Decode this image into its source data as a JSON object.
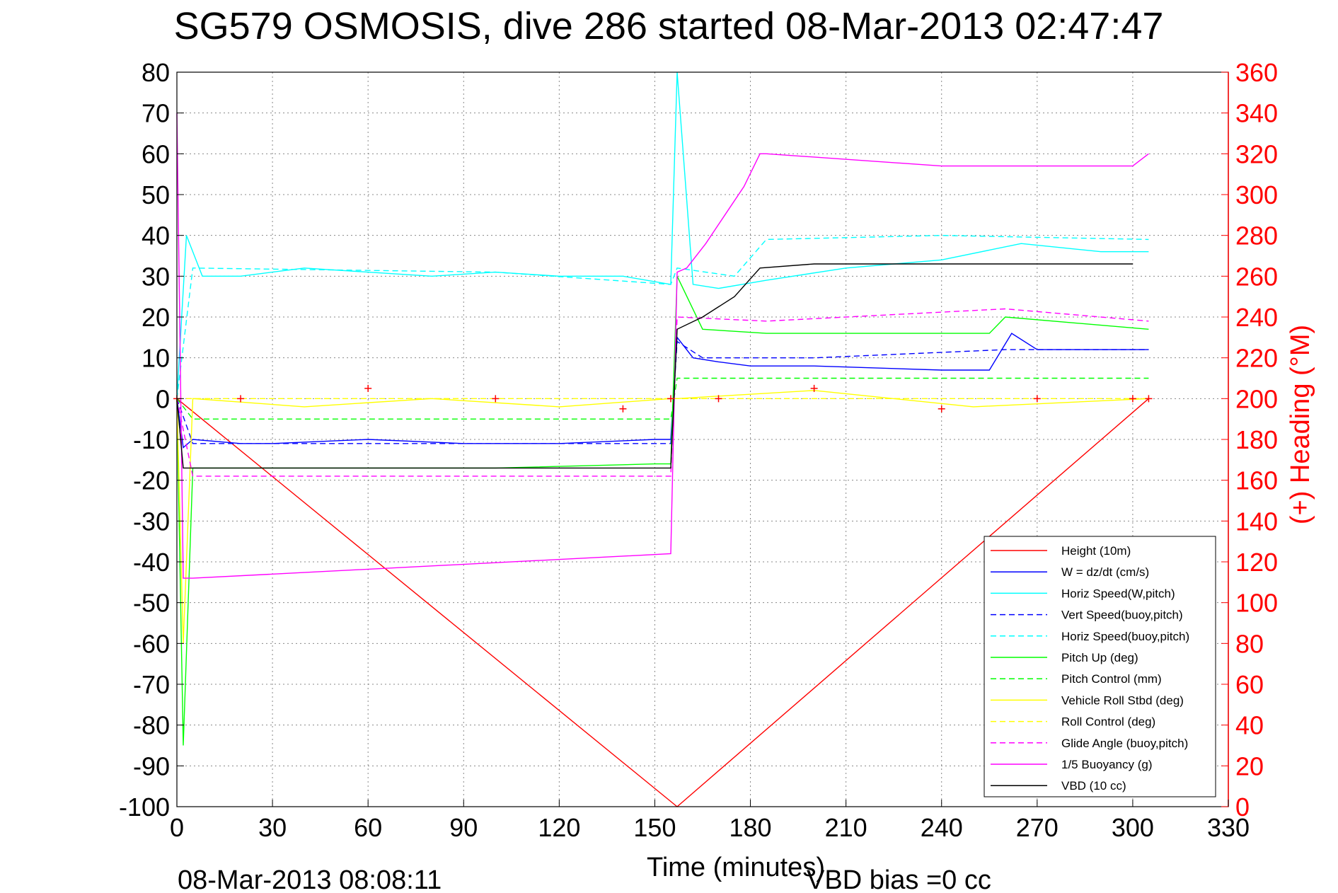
{
  "title": "SG579 OSMOSIS, dive 286 started 08-Mar-2013 02:47:47",
  "footer": {
    "end_time": "08-Mar-2013 08:08:11",
    "vbd_bias": "VBD bias =0 cc"
  },
  "chart_data": {
    "type": "line",
    "xlabel": "Time (minutes)",
    "ylabel_right": "(+) Heading (°M)",
    "xlim": [
      0,
      330
    ],
    "ylim": [
      -100,
      80
    ],
    "ylim_right": [
      0,
      360
    ],
    "x_ticks": [
      "0",
      "30",
      "60",
      "90",
      "120",
      "150",
      "180",
      "210",
      "240",
      "270",
      "300",
      "330"
    ],
    "y_ticks": [
      "80",
      "70",
      "60",
      "50",
      "40",
      "30",
      "20",
      "10",
      "0",
      "-10",
      "-20",
      "-30",
      "-40",
      "-50",
      "-60",
      "-70",
      "-80",
      "-90",
      "-100"
    ],
    "y_ticks_right": [
      "360",
      "340",
      "320",
      "300",
      "280",
      "260",
      "240",
      "220",
      "200",
      "180",
      "160",
      "140",
      "120",
      "100",
      "80",
      "60",
      "40",
      "20",
      "0"
    ],
    "grid": true,
    "legend_position": "bottom-right",
    "colors": {
      "height": "#ff0000",
      "w": "#0000ff",
      "horiz_speed": "#00ffff",
      "pitch": "#00ff00",
      "roll": "#ffff00",
      "glide": "#ff00ff",
      "buoyancy": "#ff00ff",
      "vbd": "#000000",
      "heading": "#ff0000"
    },
    "series": [
      {
        "name": "Height (10m)",
        "style": "solid",
        "color": "#ff0000",
        "x": [
          0,
          157,
          305
        ],
        "y": [
          0,
          -100,
          0
        ]
      },
      {
        "name": "W = dz/dt (cm/s)",
        "style": "solid",
        "color": "#0000ff",
        "x": [
          0,
          2,
          5,
          20,
          30,
          60,
          90,
          120,
          150,
          155,
          157,
          162,
          170,
          180,
          200,
          240,
          255,
          262,
          270,
          290,
          305
        ],
        "y": [
          0,
          -12,
          -10,
          -11,
          -11,
          -10,
          -11,
          -11,
          -10,
          -10,
          15,
          10,
          9,
          8,
          8,
          7,
          7,
          16,
          12,
          12,
          12
        ]
      },
      {
        "name": "Horiz Speed(W,pitch)",
        "style": "solid",
        "color": "#00ffff",
        "x": [
          0,
          3,
          8,
          20,
          40,
          60,
          80,
          100,
          120,
          140,
          155,
          157,
          162,
          170,
          185,
          210,
          240,
          265,
          290,
          305
        ],
        "y": [
          0,
          40,
          30,
          30,
          32,
          31,
          30,
          31,
          30,
          30,
          28,
          80,
          28,
          27,
          29,
          32,
          34,
          38,
          36,
          36
        ]
      },
      {
        "name": "Vert Speed(buoy,pitch)",
        "style": "dashed",
        "color": "#0000ff",
        "x": [
          0,
          5,
          155,
          157,
          165,
          200,
          260,
          305
        ],
        "y": [
          0,
          -11,
          -11,
          14,
          10,
          10,
          12,
          12
        ]
      },
      {
        "name": "Horiz Speed(buoy,pitch)",
        "style": "dashed",
        "color": "#00ffff",
        "x": [
          0,
          5,
          100,
          155,
          157,
          175,
          185,
          240,
          305
        ],
        "y": [
          0,
          32,
          31,
          28,
          32,
          30,
          39,
          40,
          39
        ]
      },
      {
        "name": "Pitch Up (deg)",
        "style": "solid",
        "color": "#00ff00",
        "x": [
          0,
          2,
          5,
          30,
          100,
          150,
          155,
          157,
          165,
          185,
          255,
          260,
          305
        ],
        "y": [
          0,
          -85,
          -17,
          -17,
          -17,
          -16,
          -16,
          30,
          17,
          16,
          16,
          20,
          17
        ]
      },
      {
        "name": "Pitch Control (mm)",
        "style": "dashed",
        "color": "#00ff00",
        "x": [
          0,
          5,
          155,
          157,
          305
        ],
        "y": [
          0,
          -5,
          -5,
          5,
          5
        ]
      },
      {
        "name": "Vehicle Roll Stbd (deg)",
        "style": "solid",
        "color": "#ffff00",
        "x": [
          0,
          2,
          5,
          40,
          80,
          120,
          155,
          157,
          200,
          250,
          305
        ],
        "y": [
          0,
          -60,
          0,
          -2,
          0,
          -2,
          0,
          0,
          2,
          -2,
          0
        ]
      },
      {
        "name": "Roll Control (deg)",
        "style": "dashed",
        "color": "#ffff00",
        "x": [
          0,
          305
        ],
        "y": [
          0,
          0
        ]
      },
      {
        "name": "Glide Angle (buoy,pitch)",
        "style": "dashed",
        "color": "#ff00ff",
        "x": [
          0,
          5,
          155,
          157,
          185,
          260,
          305
        ],
        "y": [
          0,
          -19,
          -19,
          20,
          19,
          22,
          19
        ]
      },
      {
        "name": "1/5 Buoyancy (g)",
        "style": "solid",
        "color": "#ff00ff",
        "x": [
          0,
          2,
          5,
          155,
          157,
          160,
          166,
          172,
          178,
          183,
          185,
          240,
          300,
          305
        ],
        "y": [
          70,
          -44,
          -44,
          -38,
          31,
          32,
          38,
          45,
          52,
          60,
          60,
          57,
          57,
          60
        ]
      },
      {
        "name": "VBD (10 cc)",
        "style": "solid",
        "color": "#000000",
        "x": [
          0,
          2,
          5,
          155,
          157,
          165,
          175,
          183,
          200,
          210,
          240,
          290,
          300
        ],
        "y": [
          0,
          -17,
          -17,
          -17,
          17,
          20,
          25,
          32,
          33,
          33,
          33,
          33,
          33
        ]
      },
      {
        "name": "Heading",
        "style": "markers",
        "marker": "+",
        "color": "#ff0000",
        "axis": "right",
        "x": [
          0,
          20,
          60,
          100,
          140,
          155,
          170,
          200,
          240,
          270,
          300,
          305
        ],
        "y": [
          200,
          200,
          205,
          200,
          195,
          200,
          200,
          205,
          195,
          200,
          200,
          200
        ]
      }
    ]
  }
}
